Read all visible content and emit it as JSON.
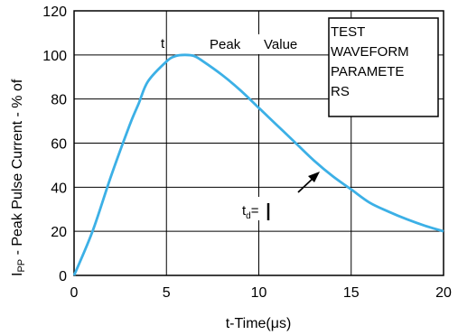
{
  "chart_data": {
    "type": "line",
    "xlabel": "t-Time(μs)",
    "ylabel": "I",
    "ylabel_sub": "PP",
    "ylabel_rest": " - Peak Pulse Current - % of",
    "xlim": [
      0,
      20
    ],
    "ylim": [
      0,
      120
    ],
    "x_ticks": [
      0,
      5,
      10,
      15,
      20
    ],
    "y_ticks": [
      0,
      20,
      40,
      60,
      80,
      100,
      120
    ],
    "grid": true,
    "series": [
      {
        "color": "#3cb0e6",
        "x": [
          0,
          1,
          2,
          3,
          3.5,
          4,
          5,
          5.5,
          6,
          6.5,
          7,
          8,
          9,
          10,
          11,
          12,
          13,
          14,
          15,
          16,
          17,
          18,
          19,
          20
        ],
        "y": [
          0,
          20,
          45,
          68,
          78,
          88,
          97,
          99.5,
          100,
          99.5,
          97,
          91,
          84,
          76,
          68,
          60,
          52,
          45,
          39,
          33,
          29,
          25.5,
          22.5,
          20
        ]
      }
    ],
    "annotations": {
      "t_label": "t",
      "peak_label": "Peak",
      "value_label": "Value",
      "td_label": "t",
      "td_sub": "d",
      "td_eq": "="
    },
    "legend_box": {
      "lines": [
        "TEST",
        "WAVEFORM",
        "PARAMETE",
        "RS"
      ]
    }
  }
}
